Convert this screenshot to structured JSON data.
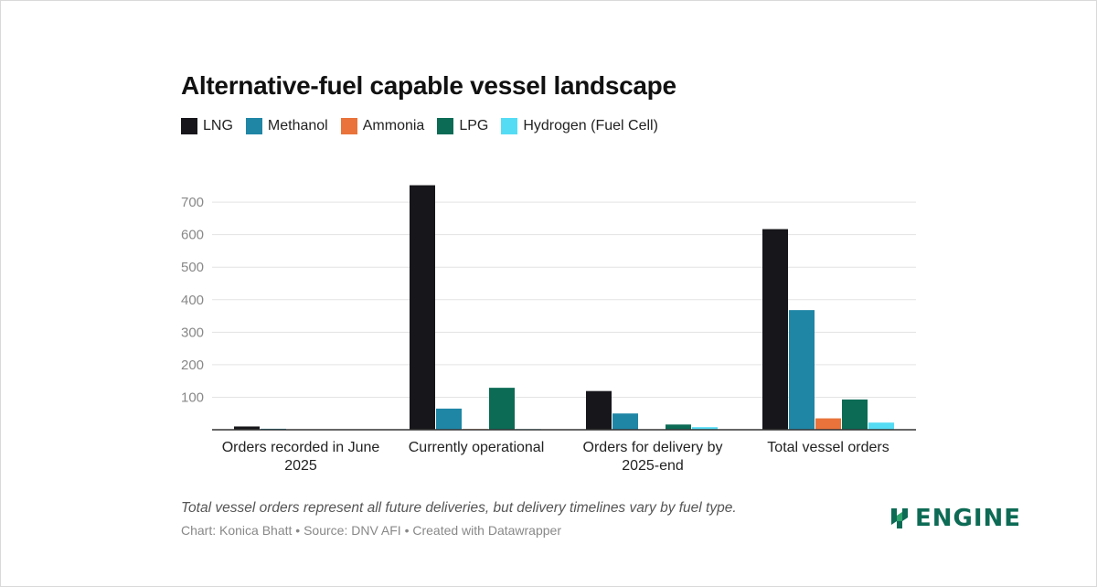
{
  "title": "Alternative-fuel capable vessel landscape",
  "legend": [
    {
      "label": "LNG",
      "color": "#17171b"
    },
    {
      "label": "Methanol",
      "color": "#1f86a6"
    },
    {
      "label": "Ammonia",
      "color": "#e9733a"
    },
    {
      "label": "LPG",
      "color": "#0c6b55"
    },
    {
      "label": "Hydrogen (Fuel Cell)",
      "color": "#55dcf5"
    }
  ],
  "chart_data": {
    "type": "bar",
    "title": "Alternative-fuel capable vessel landscape",
    "xlabel": "",
    "ylabel": "",
    "ylim": [
      0,
      750
    ],
    "yticks": [
      100,
      200,
      300,
      400,
      500,
      600,
      700
    ],
    "grid": true,
    "legend_position": "top-left",
    "categories": [
      [
        "Orders recorded in June",
        "2025"
      ],
      [
        "Currently operational"
      ],
      [
        "Orders for delivery by",
        "2025-end"
      ],
      [
        "Total vessel orders"
      ]
    ],
    "series": [
      {
        "name": "LNG",
        "color": "#17171b",
        "values": [
          10,
          752,
          119,
          617
        ]
      },
      {
        "name": "Methanol",
        "color": "#1f86a6",
        "values": [
          3,
          65,
          50,
          368
        ]
      },
      {
        "name": "Ammonia",
        "color": "#e9733a",
        "values": [
          0,
          2,
          0,
          35
        ]
      },
      {
        "name": "LPG",
        "color": "#0c6b55",
        "values": [
          0,
          129,
          16,
          93
        ]
      },
      {
        "name": "Hydrogen (Fuel Cell)",
        "color": "#55dcf5",
        "values": [
          0,
          2,
          8,
          22
        ]
      }
    ]
  },
  "footer": {
    "note": "Total vessel orders represent all future deliveries, but delivery timelines vary by fuel type.",
    "source": "Chart: Konica Bhatt • Source: DNV AFI • Created with Datawrapper"
  },
  "logo": {
    "text": "ENGINE",
    "icon": "engine-logo-icon",
    "color": "#0d6b55"
  }
}
